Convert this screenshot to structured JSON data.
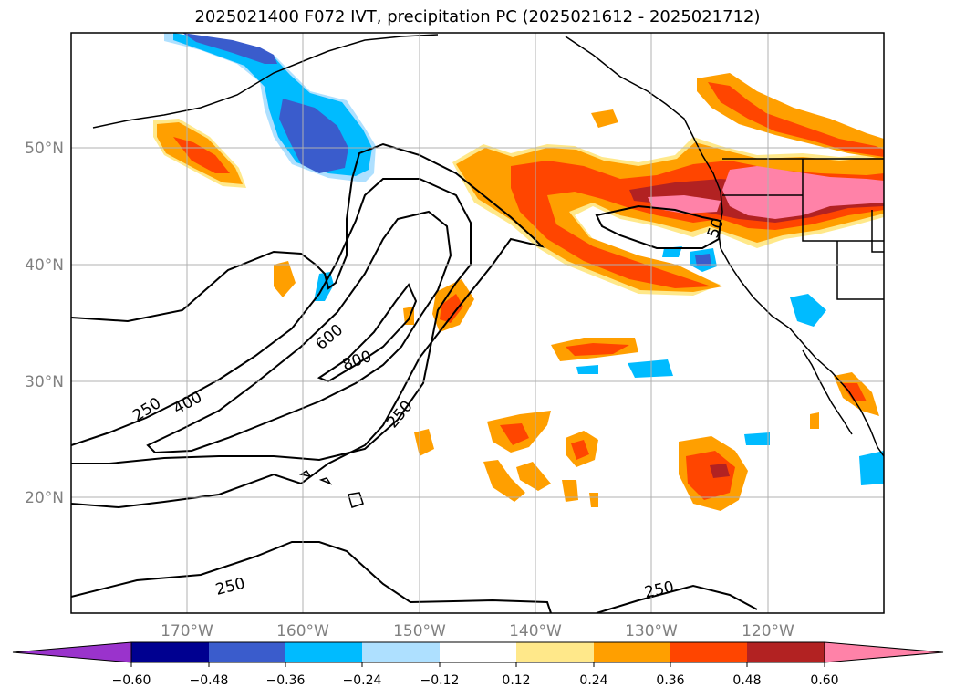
{
  "title": "2025021400 F072 IVT, precipitation PC (2025021612 - 2025021712)",
  "lat_labels": [
    "20°N",
    "30°N",
    "40°N",
    "50°N"
  ],
  "lon_labels": [
    "170°W",
    "160°W",
    "150°W",
    "140°W",
    "130°W",
    "120°W"
  ],
  "contour_labels": [
    "250",
    "400",
    "600",
    "800",
    "250",
    "250",
    "250",
    "50"
  ],
  "colorbar": {
    "ticks": [
      "−0.60",
      "−0.48",
      "−0.36",
      "−0.24",
      "−0.12",
      "0.12",
      "0.24",
      "0.36",
      "0.48",
      "0.60"
    ],
    "colors": [
      "#9a33cc",
      "#000090",
      "#3a5ccc",
      "#00bbff",
      "#aee0ff",
      "#ffffff",
      "#ffe88a",
      "#ff9f00",
      "#ff4500",
      "#b22222",
      "#ff82a8"
    ]
  },
  "colors": {
    "pink": "#ff82a8",
    "darkred": "#b22222",
    "red": "#ff4500",
    "orange": "#ff9f00",
    "lightyellow": "#ffe88a",
    "lightblue": "#aee0ff",
    "cyan": "#00bbff",
    "blue": "#3a5ccc"
  }
}
